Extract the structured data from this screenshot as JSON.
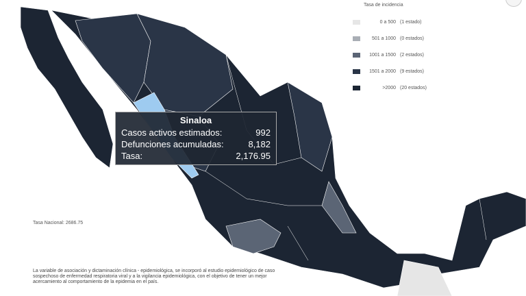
{
  "legend": {
    "title": "Tasa de incidencia",
    "items": [
      {
        "range": "0 a 500",
        "count": "(1 estado)",
        "color": "#e6e6e6"
      },
      {
        "range": "501 a 1000",
        "count": "(0 estados)",
        "color": "#a9aeb5"
      },
      {
        "range": "1001 a 1500",
        "count": "(2 estados)",
        "color": "#5b6575"
      },
      {
        "range": "1501 a 2000",
        "count": "(9 estados)",
        "color": "#2a3547"
      },
      {
        "range": ">2000",
        "count": "(20 estados)",
        "color": "#1c2533"
      }
    ]
  },
  "tasa_nacional": "Tasa Nacional: 2686.75",
  "note": "La variable de asociación y dictaminación clínica - epidemiológica, se incorporó al estudio epidemiológico de caso sospechoso de enfermedad respiratoria viral y a la vigilancia epidemiológica, con el objetivo de tener un mejor acercamiento al comportamiento de la epidemia en el país.",
  "tooltip": {
    "state": "Sinaloa",
    "rows": [
      {
        "label": "Casos activos estimados:",
        "value": "992"
      },
      {
        "label": "Defunciones acumuladas:",
        "value": "8,182"
      },
      {
        "label": "Tasa:",
        "value": "2,176.95"
      }
    ]
  },
  "highlight_color": "#9ecbf0"
}
